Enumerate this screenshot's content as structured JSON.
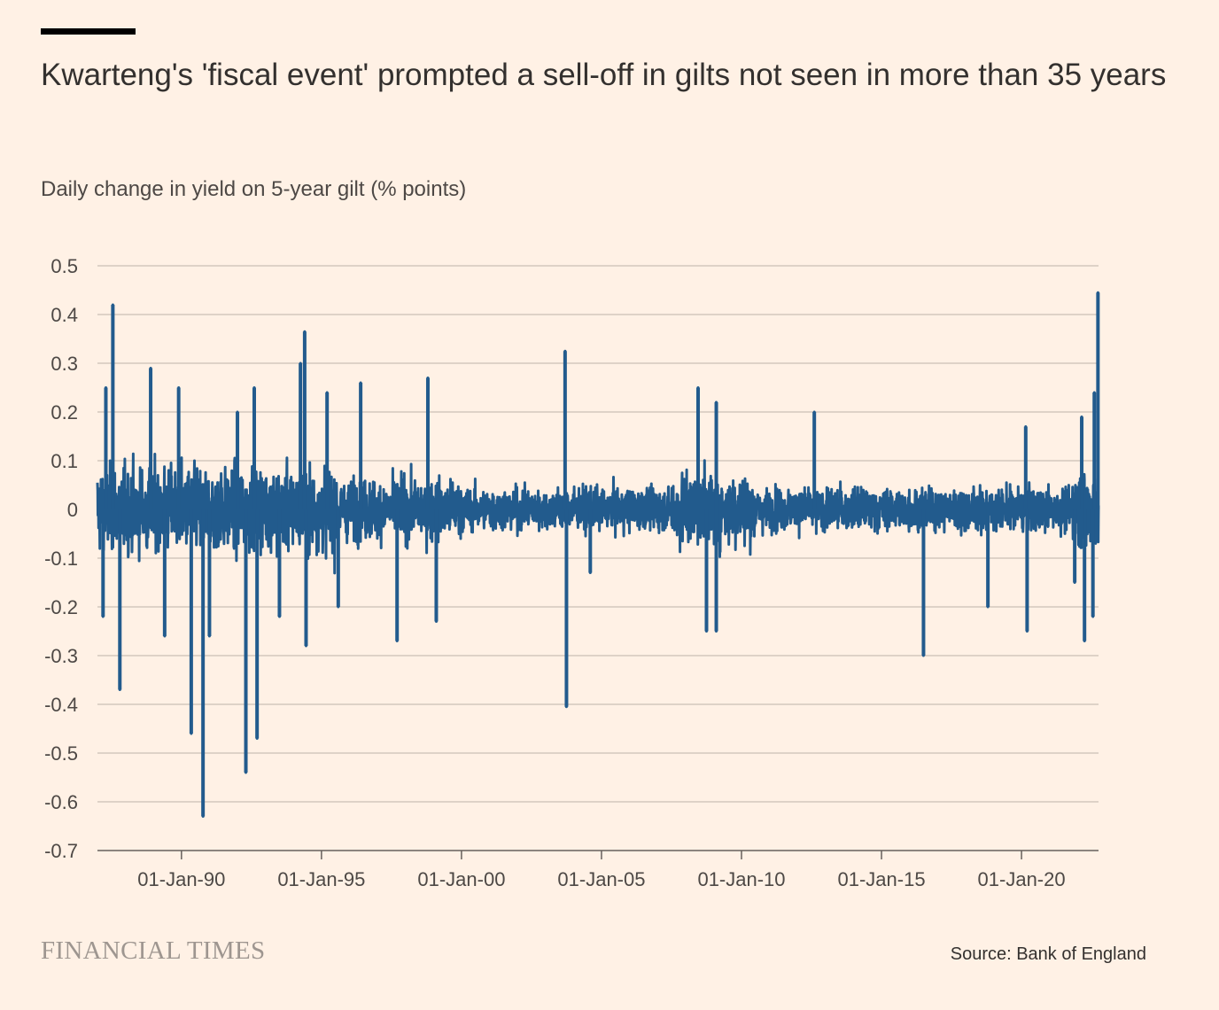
{
  "chart_data": {
    "type": "line",
    "title": "Kwarteng's 'fiscal event' prompted a sell-off in gilts not seen in more than 35 years",
    "subtitle": "Daily change in yield on 5-year gilt (% points)",
    "xlabel": "",
    "ylabel": "",
    "xlim": [
      1987.0,
      2022.75
    ],
    "ylim": [
      -0.7,
      0.5
    ],
    "grid": true,
    "y_ticks": [
      "0.5",
      "0.4",
      "0.3",
      "0.2",
      "0.1",
      "0",
      "-0.1",
      "-0.2",
      "-0.3",
      "-0.4",
      "-0.5",
      "-0.6",
      "-0.7"
    ],
    "y_tick_values": [
      0.5,
      0.4,
      0.3,
      0.2,
      0.1,
      0,
      -0.1,
      -0.2,
      -0.3,
      -0.4,
      -0.5,
      -0.6,
      -0.7
    ],
    "x_ticks": [
      "01-Jan-90",
      "01-Jan-95",
      "01-Jan-00",
      "01-Jan-05",
      "01-Jan-10",
      "01-Jan-15",
      "01-Jan-20"
    ],
    "x_tick_values": [
      1990,
      1995,
      2000,
      2005,
      2010,
      2015,
      2020
    ],
    "series": [
      {
        "name": "Daily change in 5-year gilt yield",
        "color": "#225b8d",
        "notable_points": [
          [
            1987.55,
            0.42
          ],
          [
            1987.8,
            -0.37
          ],
          [
            1987.3,
            0.25
          ],
          [
            1987.2,
            -0.22
          ],
          [
            1988.9,
            0.29
          ],
          [
            1989.4,
            -0.26
          ],
          [
            1989.9,
            0.25
          ],
          [
            1990.35,
            -0.46
          ],
          [
            1990.77,
            -0.63
          ],
          [
            1991.0,
            -0.26
          ],
          [
            1992.0,
            0.2
          ],
          [
            1992.3,
            -0.54
          ],
          [
            1992.6,
            0.25
          ],
          [
            1992.7,
            -0.47
          ],
          [
            1993.5,
            -0.22
          ],
          [
            1994.25,
            0.3
          ],
          [
            1994.4,
            0.365
          ],
          [
            1994.45,
            -0.28
          ],
          [
            1995.2,
            0.24
          ],
          [
            1995.6,
            -0.2
          ],
          [
            1996.4,
            0.26
          ],
          [
            1997.7,
            -0.27
          ],
          [
            1998.8,
            0.27
          ],
          [
            1999.1,
            -0.23
          ],
          [
            2003.7,
            0.325
          ],
          [
            2003.75,
            -0.405
          ],
          [
            2004.6,
            -0.13
          ],
          [
            2008.45,
            0.25
          ],
          [
            2008.75,
            -0.25
          ],
          [
            2009.1,
            0.22
          ],
          [
            2009.1,
            -0.25
          ],
          [
            2012.6,
            0.2
          ],
          [
            2016.5,
            -0.3
          ],
          [
            2018.8,
            -0.2
          ],
          [
            2020.15,
            0.17
          ],
          [
            2020.2,
            -0.25
          ],
          [
            2021.9,
            -0.15
          ],
          [
            2022.15,
            0.19
          ],
          [
            2022.25,
            -0.27
          ],
          [
            2022.55,
            -0.22
          ],
          [
            2022.6,
            0.24
          ],
          [
            2022.73,
            0.445
          ]
        ],
        "volatility_by_period": [
          {
            "from": 1987.0,
            "to": 1995.5,
            "std": 0.07
          },
          {
            "from": 1995.5,
            "to": 2000.0,
            "std": 0.05
          },
          {
            "from": 2000.0,
            "to": 2007.5,
            "std": 0.035
          },
          {
            "from": 2007.5,
            "to": 2010.5,
            "std": 0.06
          },
          {
            "from": 2010.5,
            "to": 2021.8,
            "std": 0.035
          },
          {
            "from": 2021.8,
            "to": 2022.75,
            "std": 0.07
          }
        ]
      }
    ]
  },
  "footer": {
    "logo": "FINANCIAL TIMES",
    "source": "Source: Bank of England"
  }
}
